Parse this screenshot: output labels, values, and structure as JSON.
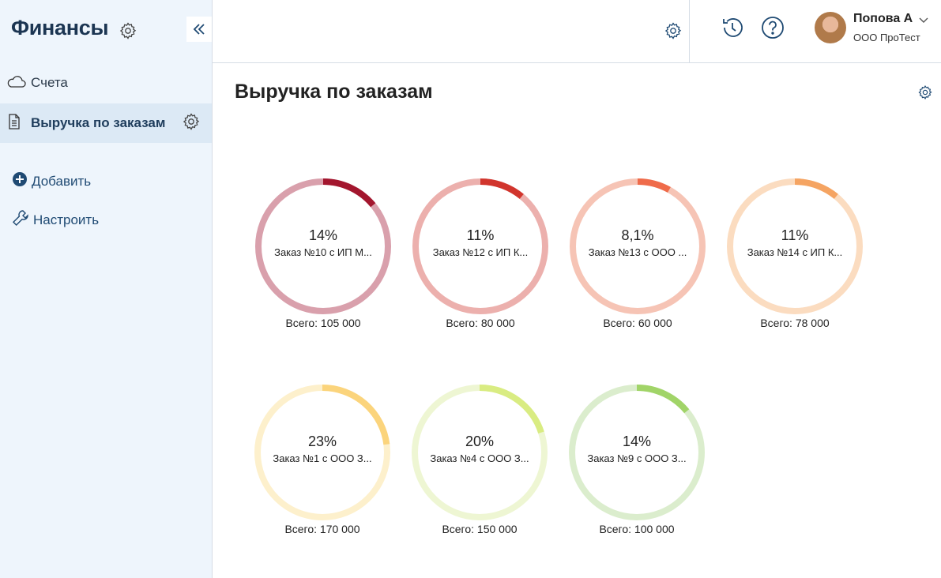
{
  "app": {
    "title": "Финансы"
  },
  "sidebar": {
    "items": [
      {
        "label": "Счета",
        "icon": "cloud-icon"
      },
      {
        "label": "Выручка по заказам",
        "icon": "document-icon"
      }
    ],
    "actions": [
      {
        "label": "Добавить",
        "icon": "plus-circle-icon"
      },
      {
        "label": "Настроить",
        "icon": "wrench-icon"
      }
    ]
  },
  "user": {
    "name": "Попова А",
    "company": "ООО ПроТест"
  },
  "page": {
    "title": "Выручка по заказам"
  },
  "colors": {
    "accent": "#1f4a73",
    "sidebar_bg": "#eef5fc"
  },
  "widgets": [
    {
      "percent_label": "14%",
      "percent": 14,
      "name": "Заказ №10 с ИП М...",
      "total": "Всего: 105 000",
      "color": "#a3162e",
      "track": "#d9a0ac"
    },
    {
      "percent_label": "11%",
      "percent": 11,
      "name": "Заказ №12 с ИП К...",
      "total": "Всего: 80 000",
      "color": "#d1352d",
      "track": "#ecb0ad"
    },
    {
      "percent_label": "8,1%",
      "percent": 8.1,
      "name": "Заказ №13 с ООО ...",
      "total": "Всего: 60 000",
      "color": "#ef6b4a",
      "track": "#f6c4b5"
    },
    {
      "percent_label": "11%",
      "percent": 11,
      "name": "Заказ №14 с ИП К...",
      "total": "Всего: 78 000",
      "color": "#f5a462",
      "track": "#fbdcc0"
    },
    {
      "percent_label": "23%",
      "percent": 23,
      "name": "Заказ №1 с ООО З...",
      "total": "Всего: 170 000",
      "color": "#fbd47c",
      "track": "#fdf0cc"
    },
    {
      "percent_label": "20%",
      "percent": 20,
      "name": "Заказ №4 с ООО З...",
      "total": "Всего: 150 000",
      "color": "#d9ec82",
      "track": "#eef6d3"
    },
    {
      "percent_label": "14%",
      "percent": 14,
      "name": "Заказ №9 с ООО З...",
      "total": "Всего: 100 000",
      "color": "#a1d468",
      "track": "#dbedcd"
    }
  ]
}
